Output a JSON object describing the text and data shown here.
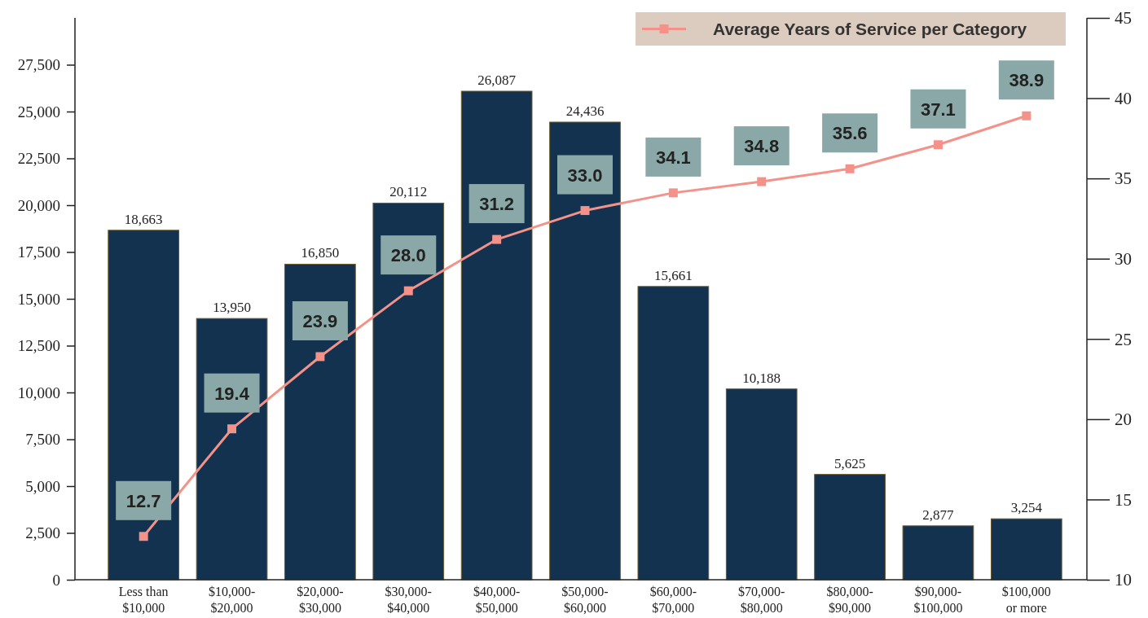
{
  "chart_data": {
    "type": "bar",
    "categories": [
      "Less than\n$10,000",
      "$10,000-\n$20,000",
      "$20,000-\n$30,000",
      "$30,000-\n$40,000",
      "$40,000-\n$50,000",
      "$50,000-\n$60,000",
      "$60,000-\n$70,000",
      "$70,000-\n$80,000",
      "$80,000-\n$90,000",
      "$90,000-\n$100,000",
      "$100,000\nor more"
    ],
    "series": [
      {
        "color": "#12324f",
        "values": [
          18663,
          13950,
          16850,
          20112,
          26087,
          24436,
          15661,
          10188,
          5625,
          2877,
          3254
        ],
        "value_labels": [
          "18,663",
          "13,950",
          "16,850",
          "20,112",
          "26,087",
          "24,436",
          "15,661",
          "10,188",
          "5,625",
          "2,877",
          "3,254"
        ]
      },
      {
        "type": "line",
        "axis": "y2",
        "name": "Average Years of Service per Category",
        "color": "#f4928a",
        "marker": "square",
        "values": [
          12.7,
          19.4,
          23.9,
          28.0,
          31.2,
          33.0,
          34.1,
          34.8,
          35.6,
          37.1,
          38.9
        ],
        "value_labels": [
          "12.7",
          "19.4",
          "23.9",
          "28.0",
          "31.2",
          "33.0",
          "34.1",
          "34.8",
          "35.6",
          "37.1",
          "38.9"
        ]
      }
    ],
    "ylim": [
      0,
      30000
    ],
    "yticks": [
      0,
      {
        "value": 2500,
        "label": "2,500"
      },
      {
        "value": 5000,
        "label": "5,000"
      },
      {
        "value": 7500,
        "label": "7,500"
      },
      {
        "value": 10000,
        "label": "10,000"
      },
      {
        "value": 12500,
        "label": "12,500"
      },
      {
        "value": 15000,
        "label": "15,000"
      },
      {
        "value": 17500,
        "label": "17,500"
      },
      {
        "value": 20000,
        "label": "20,000"
      },
      {
        "value": 22500,
        "label": "22,500"
      },
      {
        "value": 25000,
        "label": "25,000"
      },
      {
        "value": 27500,
        "label": "27,500"
      }
    ],
    "y2lim": [
      10,
      45
    ],
    "y2ticks": [
      10,
      15,
      20,
      25,
      30,
      35,
      40,
      45
    ],
    "legend": "top right",
    "grid": false
  }
}
